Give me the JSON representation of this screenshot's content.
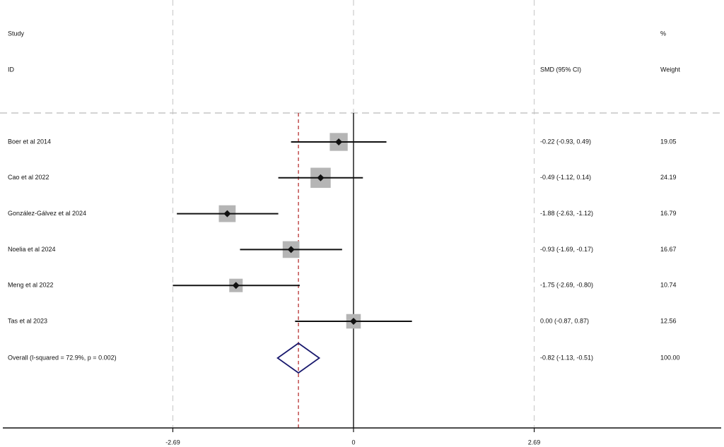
{
  "chart_data": {
    "type": "forest",
    "headers": {
      "study_line1": "Study",
      "study_line2": "ID",
      "effect": "SMD (95% CI)",
      "weight_line1": "%",
      "weight_line2": "Weight"
    },
    "studies": [
      {
        "label": "Boer et al 2014",
        "smd": -0.22,
        "lower": -0.93,
        "upper": 0.49,
        "ci_text": "-0.22 (-0.93, 0.49)",
        "weight": 19.05,
        "weight_text": "19.05"
      },
      {
        "label": "Cao et al 2022",
        "smd": -0.49,
        "lower": -1.12,
        "upper": 0.14,
        "ci_text": "-0.49 (-1.12, 0.14)",
        "weight": 24.19,
        "weight_text": "24.19"
      },
      {
        "label": "González-Gálvez et al 2024",
        "smd": -1.88,
        "lower": -2.63,
        "upper": -1.12,
        "ci_text": "-1.88 (-2.63, -1.12)",
        "weight": 16.79,
        "weight_text": "16.79"
      },
      {
        "label": "Noelia et al 2024",
        "smd": -0.93,
        "lower": -1.69,
        "upper": -0.17,
        "ci_text": "-0.93 (-1.69, -0.17)",
        "weight": 16.67,
        "weight_text": "16.67"
      },
      {
        "label": "Meng et al 2022",
        "smd": -1.75,
        "lower": -2.69,
        "upper": -0.8,
        "ci_text": "-1.75 (-2.69, -0.80)",
        "weight": 10.74,
        "weight_text": "10.74"
      },
      {
        "label": "Tas et al 2023",
        "smd": 0.0,
        "lower": -0.87,
        "upper": 0.87,
        "ci_text": "0.00 (-0.87, 0.87)",
        "weight": 12.56,
        "weight_text": "12.56"
      }
    ],
    "overall": {
      "label": "Overall  (I-squared = 72.9%, p = 0.002)",
      "smd": -0.82,
      "lower": -1.13,
      "upper": -0.51,
      "ci_text": "-0.82 (-1.13, -0.51)",
      "weight_text": "100.00"
    },
    "x_ticks": [
      -2.69,
      0,
      2.69
    ],
    "x_tick_labels": [
      "-2.69",
      "0",
      "2.69"
    ],
    "xlim": [
      -5.3,
      5.4
    ],
    "reference_line": 0,
    "overall_line": -0.82,
    "colors": {
      "axis": "#111111",
      "ci_line": "#111111",
      "weight_box": "#b5b5b5",
      "point": "#111111",
      "diamond": "#1a1a6e",
      "overall_line": "#b22222",
      "grid": "#cccccc"
    }
  }
}
